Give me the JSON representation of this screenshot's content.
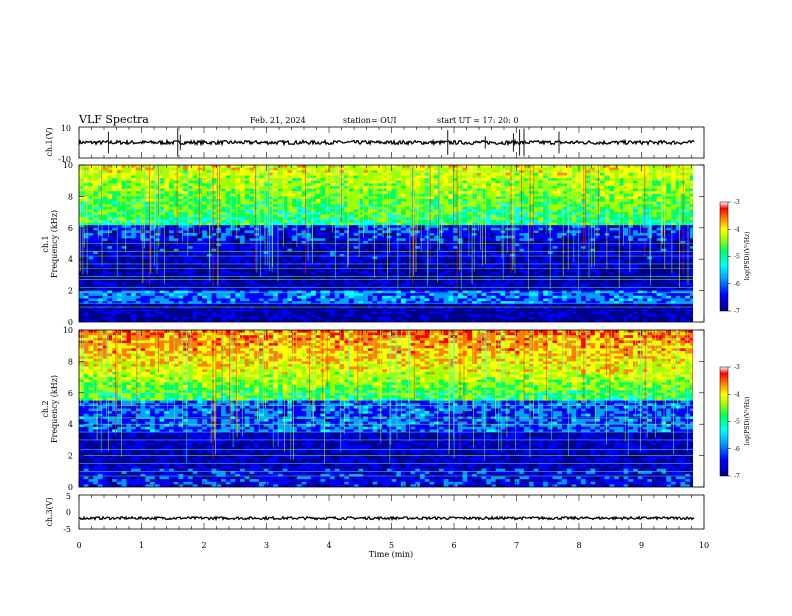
{
  "header": {
    "title": "VLF Spectra",
    "date": "Feb. 21, 2024",
    "station": "station= OUI",
    "start": "start  UT  =  17: 20: 0"
  },
  "chart_data": [
    {
      "type": "line",
      "panel": "ch1-waveform",
      "ylabel": "ch.1(V)",
      "ylim": [
        -10,
        10
      ],
      "y_ticks": [
        "10",
        "-10"
      ],
      "level": 0,
      "xlim": [
        0,
        10
      ]
    },
    {
      "type": "heatmap",
      "panel": "ch1-spectrogram",
      "ylabel": "ch.1\nFrequency (kHz)",
      "ylim": [
        0,
        10
      ],
      "y_ticks": [
        "0",
        "2",
        "4",
        "6",
        "8",
        "10"
      ],
      "xlim": [
        0,
        10
      ],
      "colorbar": {
        "label": "log(PSD)(V²/Hz)",
        "range": [
          -7,
          -3
        ],
        "ticks": [
          "-3",
          "-4",
          "-5",
          "-6",
          "-7"
        ]
      }
    },
    {
      "type": "heatmap",
      "panel": "ch2-spectrogram",
      "ylabel": "ch.2\nFrequency (kHz)",
      "ylim": [
        0,
        10
      ],
      "y_ticks": [
        "0",
        "2",
        "4",
        "6",
        "8",
        "10"
      ],
      "xlim": [
        0,
        10
      ],
      "colorbar": {
        "label": "log(PSD)(V²/Hz)",
        "range": [
          -7,
          -3
        ],
        "ticks": [
          "-3",
          "-4",
          "-5",
          "-6",
          "-7"
        ]
      }
    },
    {
      "type": "line",
      "panel": "ch3-waveform",
      "ylabel": "ch.3(V)",
      "ylim": [
        -5,
        5
      ],
      "y_ticks": [
        "5",
        "0",
        "-5"
      ],
      "level": -1.8,
      "xlim": [
        0,
        10
      ],
      "xlabel": "Time (min)",
      "x_ticks": [
        "0",
        "1",
        "2",
        "3",
        "4",
        "5",
        "6",
        "7",
        "8",
        "9",
        "10"
      ]
    }
  ],
  "colormap": [
    "#00008a",
    "#0000ff",
    "#00a0ff",
    "#00ffff",
    "#00ff60",
    "#a0ff00",
    "#ffff00",
    "#ff8000",
    "#ff0000",
    "#9a0000"
  ]
}
